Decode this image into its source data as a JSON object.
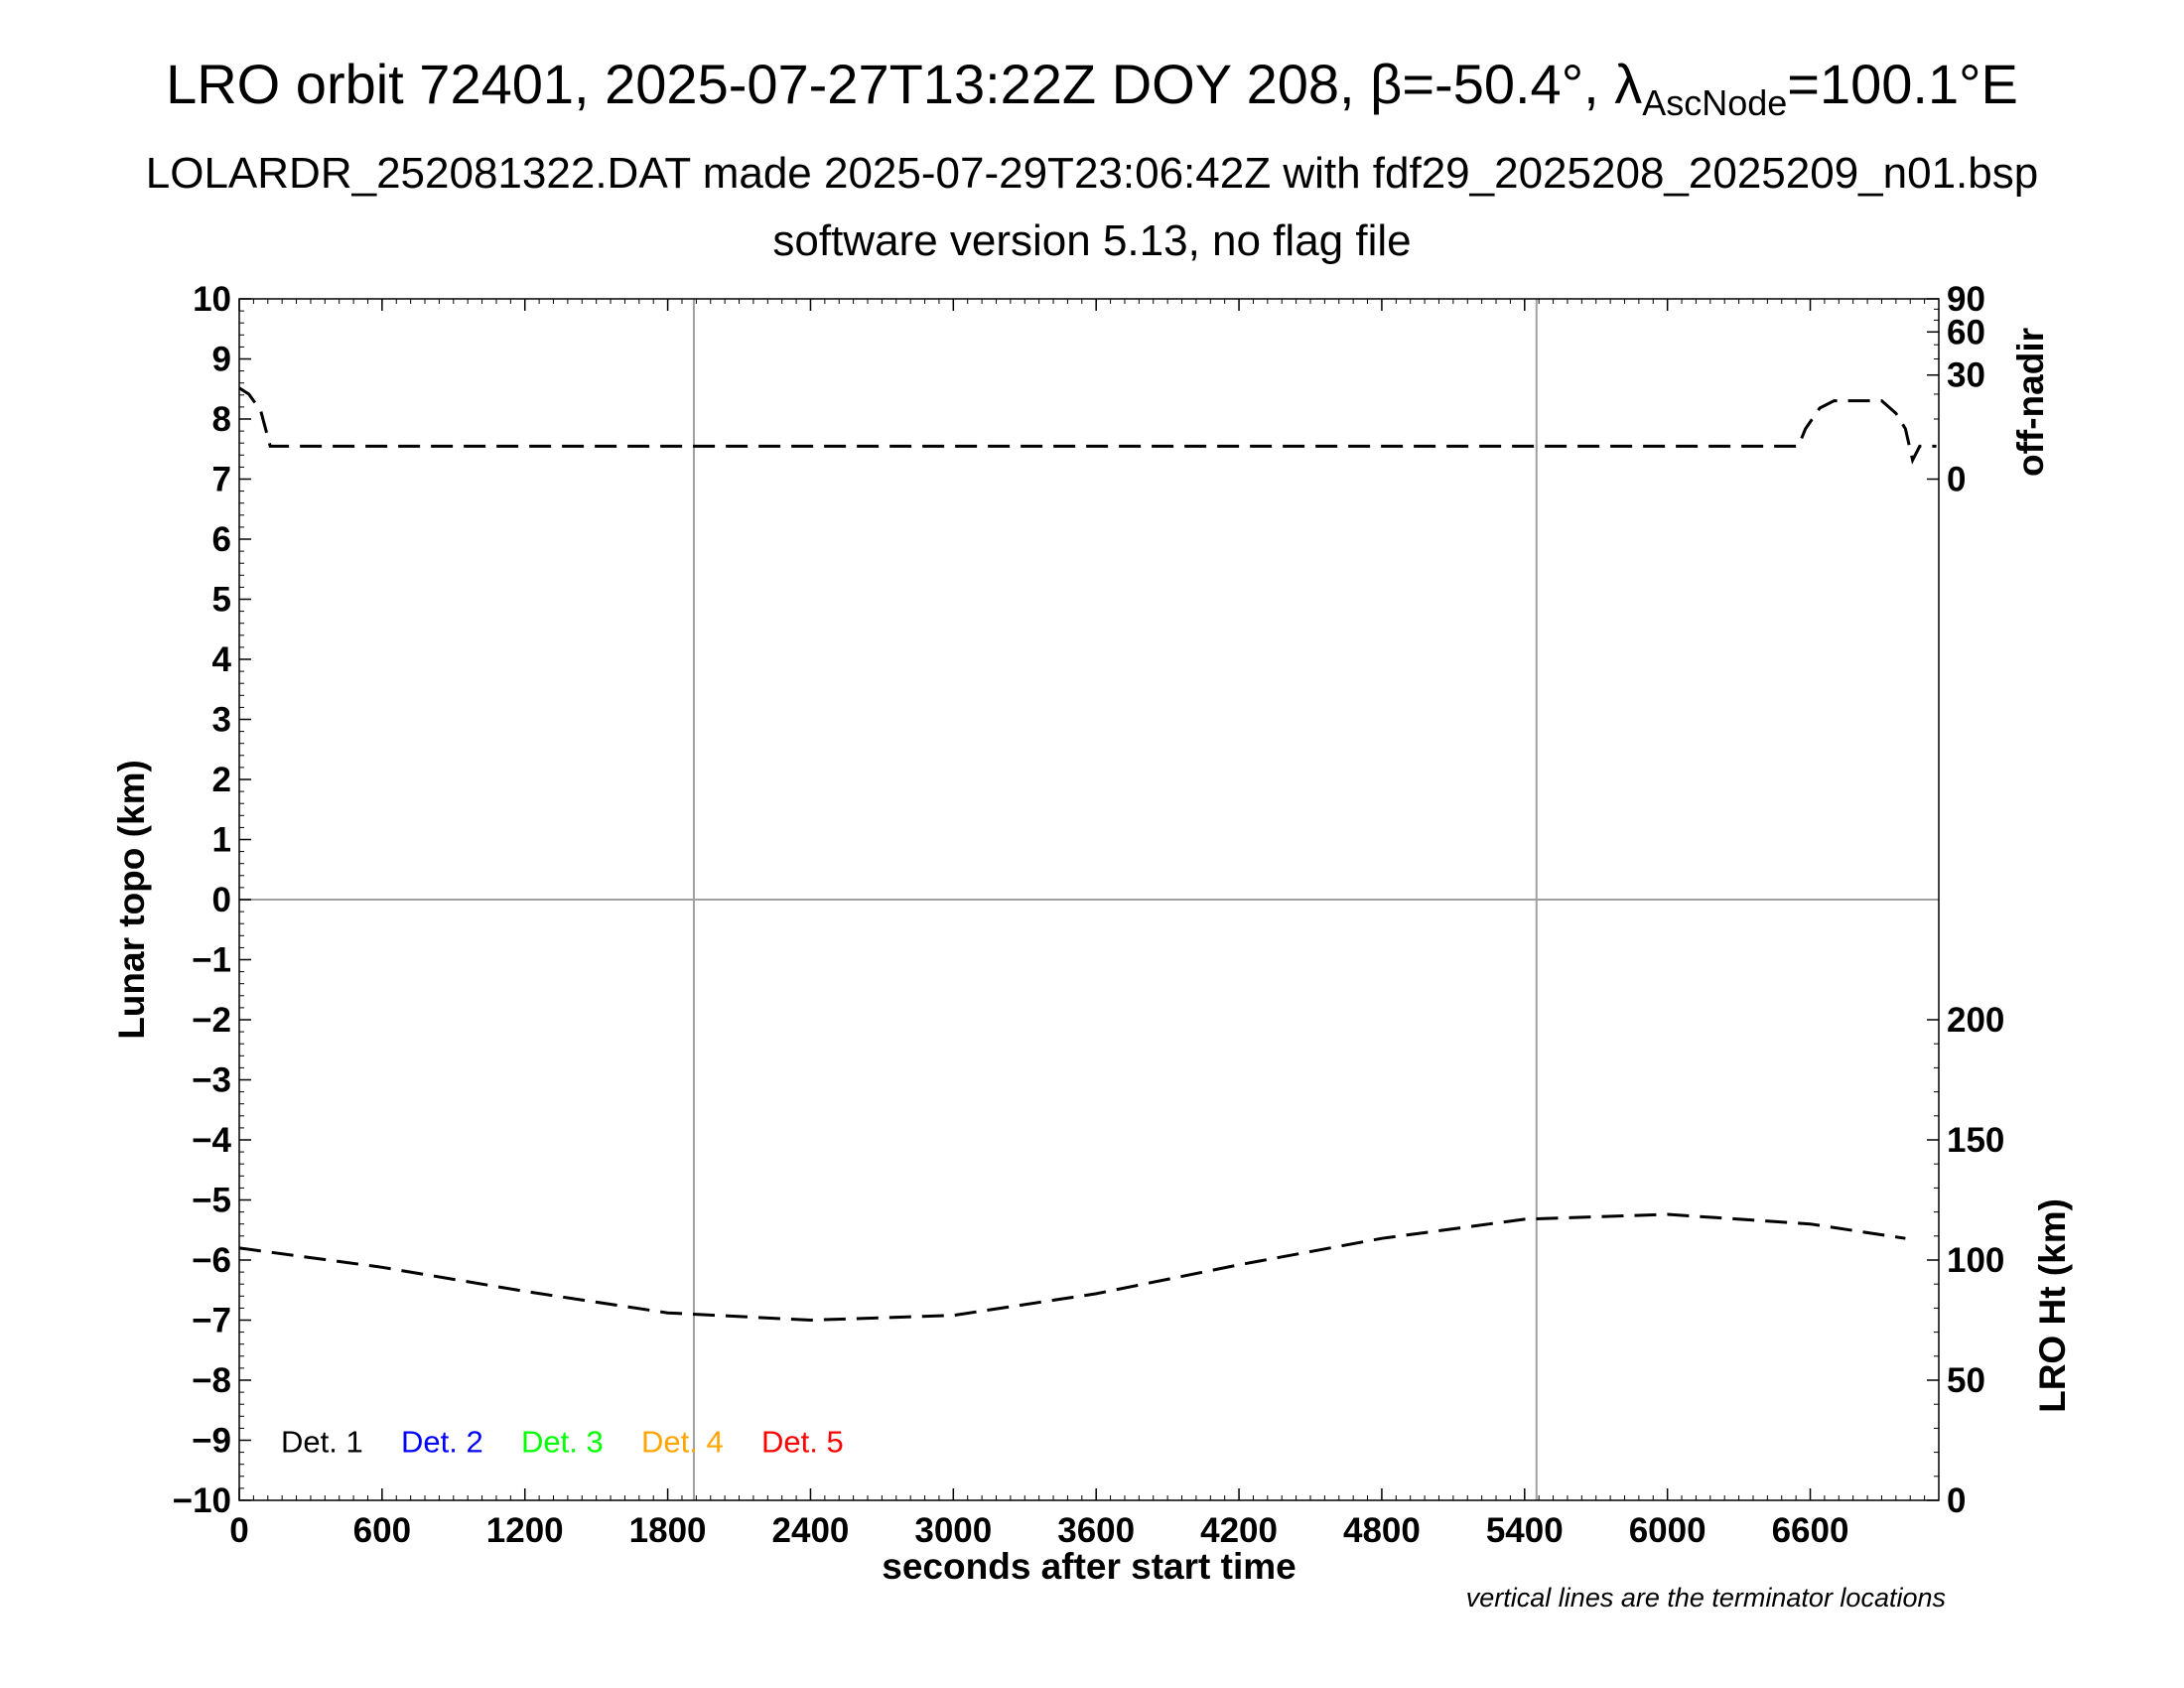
{
  "titles": {
    "line1_pre": "LRO orbit 72401, 2025-07-27T13:22Z DOY 208, β=-50.4°, λ",
    "line1_sub": "AscNode",
    "line1_post": "=100.1°E",
    "line2": "LOLARDR_252081322.DAT made 2025-07-29T23:06:42Z with fdf29_2025208_2025209_n01.bsp",
    "line3": "software version 5.13, no flag file"
  },
  "note": "vertical lines are the terminator locations",
  "chart_data": {
    "type": "line",
    "xlabel": "seconds after start time",
    "ylabel": "Lunar topo (km)",
    "xlim": [
      0,
      7140
    ],
    "x_ticks": [
      0,
      600,
      1200,
      1800,
      2400,
      3000,
      3600,
      4200,
      4800,
      5400,
      6000,
      6600
    ],
    "ylim": [
      -10,
      10
    ],
    "y_ticks": [
      -10,
      -9,
      -8,
      -7,
      -6,
      -5,
      -4,
      -3,
      -2,
      -1,
      0,
      1,
      2,
      3,
      4,
      5,
      6,
      7,
      8,
      9,
      10
    ],
    "y_tick_labels": [
      "−10",
      "−9",
      "−8",
      "−7",
      "−6",
      "−5",
      "−4",
      "−3",
      "−2",
      "−1",
      "0",
      "1",
      "2",
      "3",
      "4",
      "5",
      "6",
      "7",
      "8",
      "9",
      "10"
    ],
    "right_axes": [
      {
        "label": "off-nadir",
        "ticks": [
          0,
          30,
          60,
          90
        ],
        "tick_labels": [
          "0",
          "30",
          "60",
          "90"
        ],
        "scale": "sqrt",
        "range": [
          0,
          90
        ]
      },
      {
        "label": "LRO Ht (km)",
        "ticks": [
          0,
          50,
          100,
          150,
          200
        ],
        "tick_labels": [
          "0",
          "50",
          "100",
          "150",
          "200"
        ],
        "range": [
          0,
          200
        ]
      }
    ],
    "terminators": [
      1910,
      5450
    ],
    "grid": "zero line and terminator lines",
    "legend": {
      "placement": "bottom-left",
      "entries": [
        {
          "label": "Det. 1",
          "color": "#000000"
        },
        {
          "label": "Det. 2",
          "color": "#0000ff"
        },
        {
          "label": "Det. 3",
          "color": "#00ff00"
        },
        {
          "label": "Det. 4",
          "color": "#ffa500"
        },
        {
          "label": "Det. 5",
          "color": "#ff0000"
        }
      ]
    },
    "series": [
      {
        "axis": "off-nadir",
        "style": "dashed",
        "color": "#000000",
        "x": [
          0,
          40,
          90,
          130,
          200,
          1000,
          2000,
          3000,
          4000,
          5000,
          6000,
          6550,
          6580,
          6640,
          6700,
          6800,
          6900,
          6960,
          7000,
          7030,
          7060,
          7130
        ],
        "y": [
          23,
          20,
          13,
          3,
          3,
          3,
          3,
          3,
          3,
          3,
          3,
          3,
          7,
          14,
          17,
          17,
          17,
          12,
          7,
          1,
          3,
          3
        ]
      },
      {
        "axis": "LRO Ht (km)",
        "style": "dashed",
        "color": "#000000",
        "x": [
          0,
          600,
          1200,
          1800,
          2400,
          3000,
          3600,
          4200,
          4800,
          5400,
          6000,
          6600,
          7000
        ],
        "y": [
          105,
          97,
          87,
          78,
          75,
          77,
          86,
          98,
          109,
          117,
          119,
          115,
          109
        ]
      }
    ]
  }
}
